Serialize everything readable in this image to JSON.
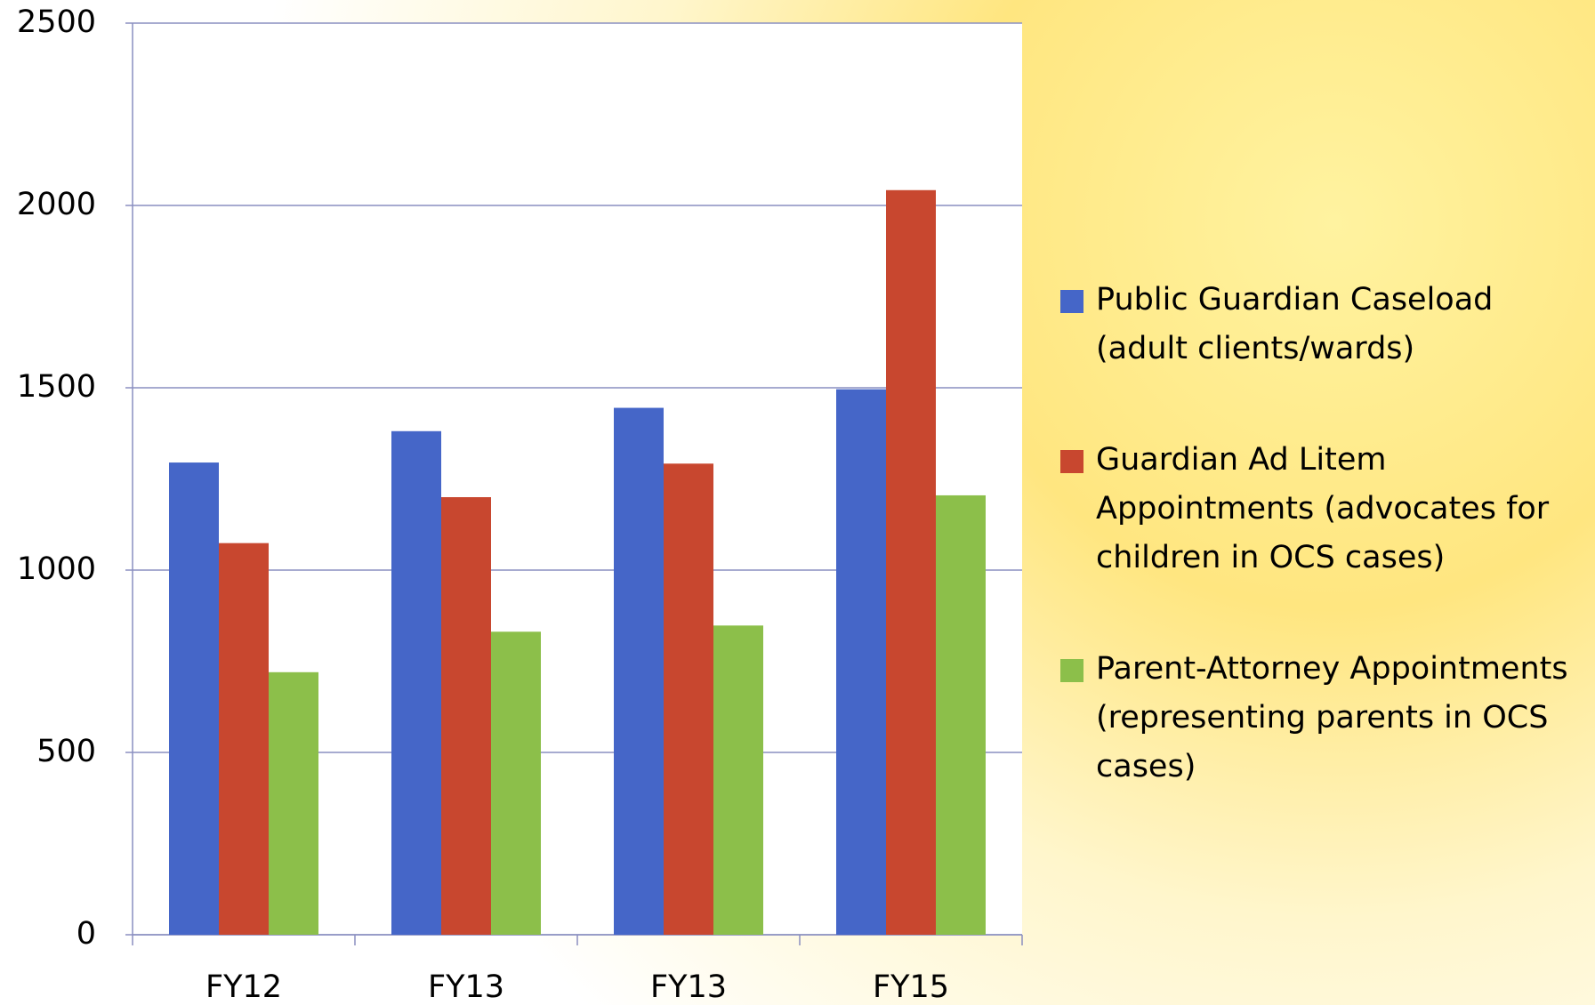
{
  "chart_data": {
    "type": "bar",
    "categories": [
      "FY12",
      "FY13",
      "FY13",
      "FY15"
    ],
    "series": [
      {
        "name": "Public Guardian Caseload (adult clients/wards)",
        "color": "#4566c8",
        "values": [
          1295,
          1381,
          1445,
          1496
        ]
      },
      {
        "name": "Guardian Ad Litem Appointments (advocates for children in OCS cases)",
        "color": "#c8472f",
        "values": [
          1074,
          1200,
          1292,
          2042
        ]
      },
      {
        "name": "Parent-Attorney Appointments (representing parents in OCS cases)",
        "color": "#8cbf4a",
        "values": [
          720,
          831,
          848,
          1205
        ]
      }
    ],
    "ylim": [
      0,
      2500
    ],
    "yticks": [
      0,
      500,
      1000,
      1500,
      2000,
      2500
    ],
    "grid": true,
    "legend": "right"
  }
}
